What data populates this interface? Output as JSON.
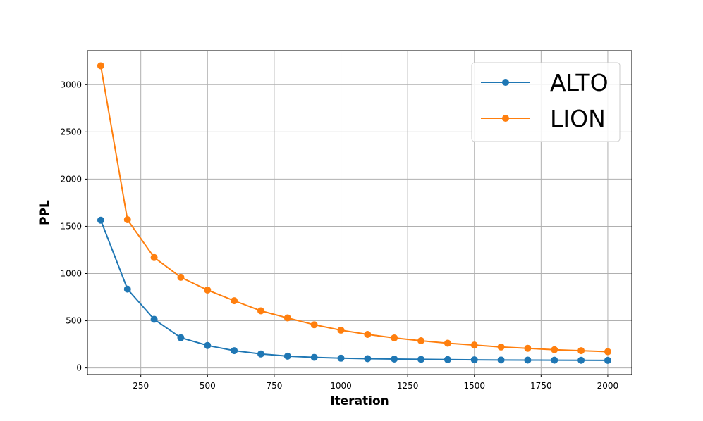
{
  "chart_data": {
    "type": "line",
    "title": "",
    "xlabel": "Iteration",
    "ylabel": "PPL",
    "xlim": [
      50,
      2090
    ],
    "ylim": [
      -70,
      3360
    ],
    "xticks": [
      250,
      500,
      750,
      1000,
      1250,
      1500,
      1750,
      2000
    ],
    "yticks": [
      0,
      500,
      1000,
      1500,
      2000,
      2500,
      3000
    ],
    "grid": true,
    "legend_position": "top-right",
    "x": [
      100,
      200,
      300,
      400,
      500,
      600,
      700,
      800,
      900,
      1000,
      1100,
      1200,
      1300,
      1400,
      1500,
      1600,
      1700,
      1800,
      1900,
      2000
    ],
    "series": [
      {
        "name": "ALTO",
        "color": "#1f77b4",
        "values": [
          1565,
          835,
          515,
          320,
          238,
          183,
          148,
          125,
          112,
          103,
          98,
          94,
          91,
          88,
          86,
          84,
          83,
          82,
          81,
          80
        ]
      },
      {
        "name": "LION",
        "color": "#ff7f0e",
        "values": [
          3200,
          1570,
          1170,
          960,
          825,
          712,
          605,
          530,
          458,
          400,
          355,
          318,
          288,
          262,
          242,
          222,
          208,
          193,
          183,
          172
        ]
      }
    ]
  }
}
